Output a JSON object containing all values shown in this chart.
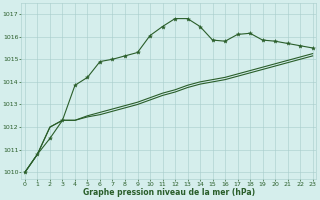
{
  "xlabel": "Graphe pression niveau de la mer (hPa)",
  "ylim": [
    1009.7,
    1017.5
  ],
  "xlim": [
    -0.3,
    23.3
  ],
  "yticks": [
    1010,
    1011,
    1012,
    1013,
    1014,
    1015,
    1016,
    1017
  ],
  "xticks": [
    0,
    1,
    2,
    3,
    4,
    5,
    6,
    7,
    8,
    9,
    10,
    11,
    12,
    13,
    14,
    15,
    16,
    17,
    18,
    19,
    20,
    21,
    22,
    23
  ],
  "bg_color": "#d5eeec",
  "grid_color": "#a8cccb",
  "line_color": "#2a5e2a",
  "line1_y": [
    1010.0,
    1010.8,
    1011.5,
    1012.3,
    1013.85,
    1014.2,
    1014.9,
    1015.0,
    1015.15,
    1015.3,
    1016.05,
    1016.45,
    1016.8,
    1016.8,
    1016.45,
    1015.85,
    1015.8,
    1016.1,
    1016.15,
    1015.85,
    1015.8,
    1015.7,
    1015.6,
    1015.5
  ],
  "line2_y": [
    1010.0,
    1010.8,
    1012.0,
    1012.3,
    1012.3,
    1012.5,
    1012.65,
    1012.8,
    1012.95,
    1013.1,
    1013.3,
    1013.5,
    1013.65,
    1013.85,
    1014.0,
    1014.1,
    1014.2,
    1014.35,
    1014.5,
    1014.65,
    1014.8,
    1014.95,
    1015.1,
    1015.25
  ],
  "line3_y": [
    1010.0,
    1010.8,
    1012.0,
    1012.3,
    1012.3,
    1012.45,
    1012.55,
    1012.7,
    1012.85,
    1013.0,
    1013.2,
    1013.4,
    1013.55,
    1013.75,
    1013.9,
    1014.0,
    1014.1,
    1014.25,
    1014.4,
    1014.55,
    1014.7,
    1014.85,
    1015.0,
    1015.15
  ]
}
